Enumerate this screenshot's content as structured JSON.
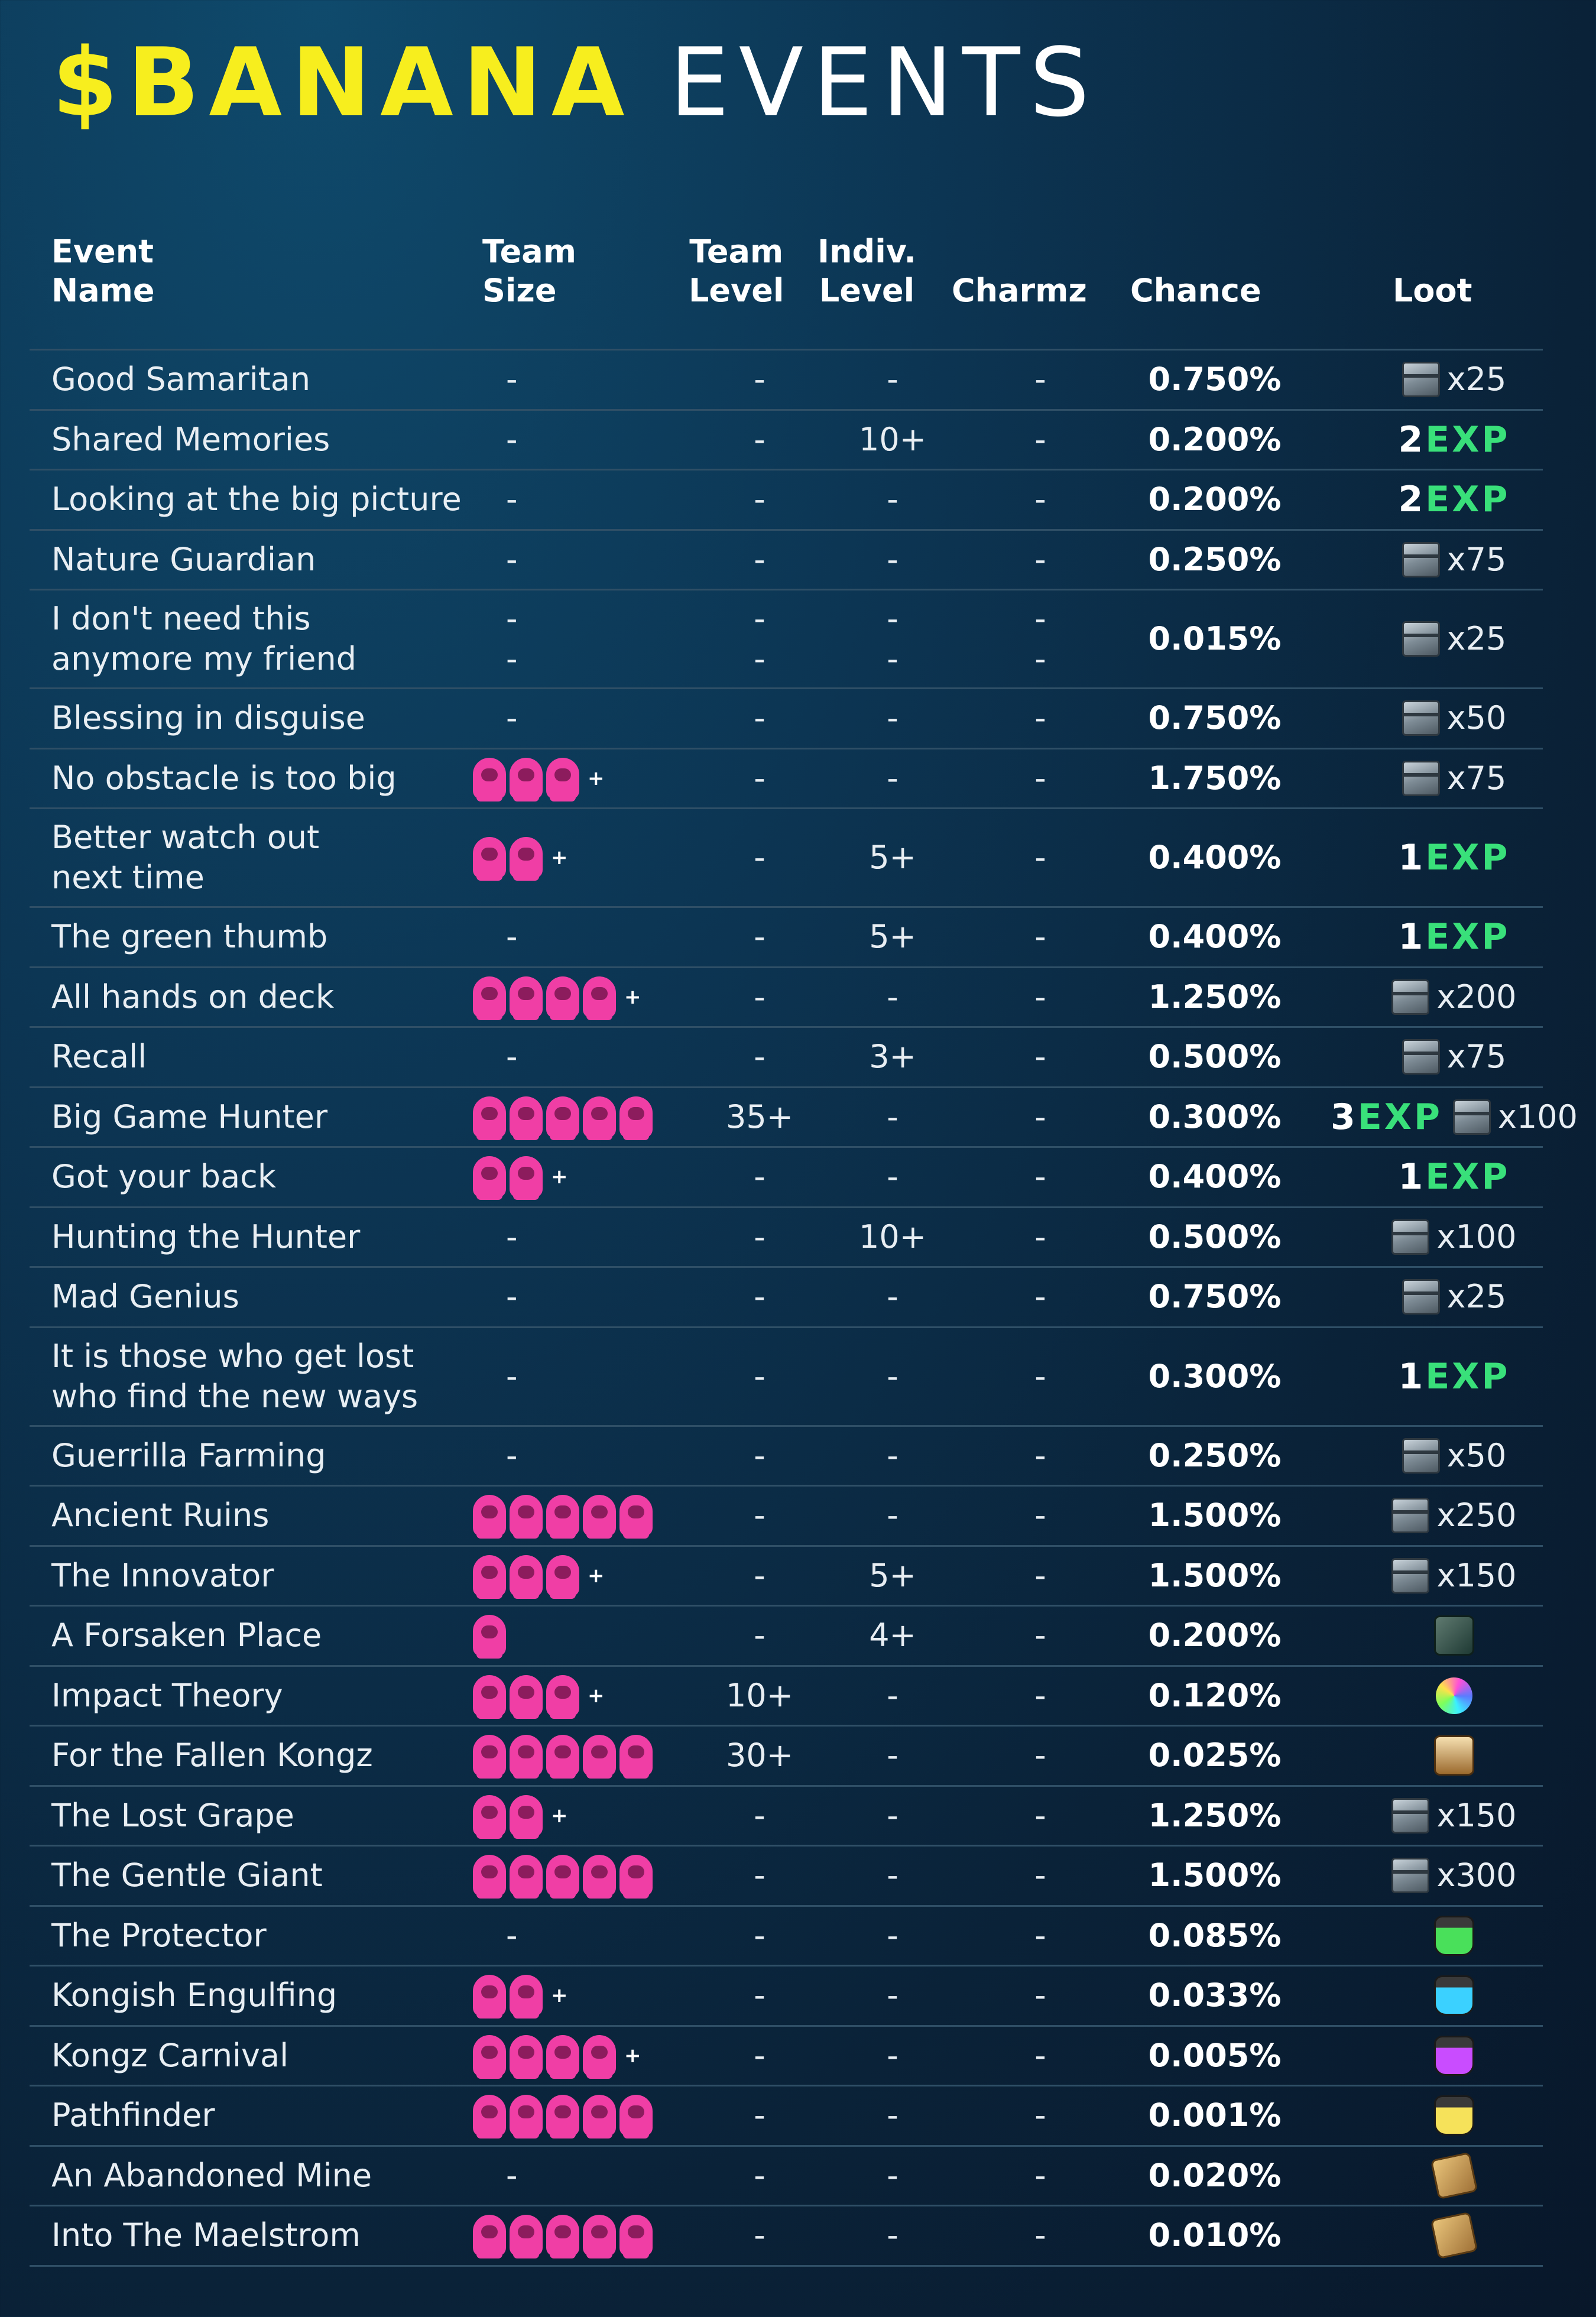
{
  "title": {
    "accent": "$BANANA",
    "rest": "EVENTS"
  },
  "headers": {
    "name": "Event\nName",
    "team_size": "Team\nSize",
    "team_level": "Team\nLevel",
    "indiv_level": "Indiv.\nLevel",
    "charmz": "Charmz",
    "chance": "Chance",
    "loot": "Loot"
  },
  "colors": {
    "accent": "#f7ee1e",
    "ape": "#f03ea5",
    "exp": "#39e07a"
  },
  "rows": [
    {
      "name": "Good Samaritan",
      "apes": 0,
      "plus": false,
      "team_level": "-",
      "indiv_level": "-",
      "charmz": "-",
      "chance": "0.750%",
      "loot": {
        "type": "chest",
        "count": "x25"
      }
    },
    {
      "name": "Shared Memories",
      "apes": 0,
      "plus": false,
      "team_level": "-",
      "indiv_level": "10+",
      "charmz": "-",
      "chance": "0.200%",
      "loot": {
        "type": "exp",
        "num": "2",
        "word": "EXP"
      }
    },
    {
      "name": "Looking at the big picture",
      "apes": 0,
      "plus": false,
      "team_level": "-",
      "indiv_level": "-",
      "charmz": "-",
      "chance": "0.200%",
      "loot": {
        "type": "exp",
        "num": "2",
        "word": "EXP"
      }
    },
    {
      "name": "Nature Guardian",
      "apes": 0,
      "plus": false,
      "team_level": "-",
      "indiv_level": "-",
      "charmz": "-",
      "chance": "0.250%",
      "loot": {
        "type": "chest",
        "count": "x75"
      }
    },
    {
      "name": "I don't need this\nanymore my friend",
      "apes": 0,
      "plus": false,
      "double": true,
      "team_level": "-\n-",
      "indiv_level": "-\n-",
      "charmz": "-\n-",
      "team_dash": "-\n-",
      "chance": "0.015%",
      "loot": {
        "type": "chest",
        "count": "x25"
      }
    },
    {
      "name": "Blessing in disguise",
      "apes": 0,
      "plus": false,
      "team_level": "-",
      "indiv_level": "-",
      "charmz": "-",
      "chance": "0.750%",
      "loot": {
        "type": "chest",
        "count": "x50"
      }
    },
    {
      "name": "No obstacle is too big",
      "apes": 3,
      "plus": true,
      "team_level": "-",
      "indiv_level": "-",
      "charmz": "-",
      "chance": "1.750%",
      "loot": {
        "type": "chest",
        "count": "x75"
      }
    },
    {
      "name": "Better watch out\nnext time",
      "apes": 2,
      "plus": true,
      "double": true,
      "team_level": "-",
      "indiv_level": "5+",
      "charmz": "-",
      "chance": "0.400%",
      "loot": {
        "type": "exp",
        "num": "1",
        "word": "EXP"
      }
    },
    {
      "name": "The green thumb",
      "apes": 0,
      "plus": false,
      "team_level": "-",
      "indiv_level": "5+",
      "charmz": "-",
      "chance": "0.400%",
      "loot": {
        "type": "exp",
        "num": "1",
        "word": "EXP"
      }
    },
    {
      "name": "All hands on deck",
      "apes": 4,
      "plus": true,
      "team_level": "-",
      "indiv_level": "-",
      "charmz": "-",
      "chance": "1.250%",
      "loot": {
        "type": "chest",
        "count": "x200"
      }
    },
    {
      "name": "Recall",
      "apes": 0,
      "plus": false,
      "team_level": "-",
      "indiv_level": "3+",
      "charmz": "-",
      "chance": "0.500%",
      "loot": {
        "type": "chest",
        "count": "x75"
      }
    },
    {
      "name": "Big Game Hunter",
      "apes": 5,
      "plus": false,
      "team_level": "35+",
      "indiv_level": "-",
      "charmz": "-",
      "chance": "0.300%",
      "loot": {
        "type": "exp_chest",
        "num": "3",
        "word": "EXP",
        "count": "x100"
      }
    },
    {
      "name": "Got your back",
      "apes": 2,
      "plus": true,
      "team_level": "-",
      "indiv_level": "-",
      "charmz": "-",
      "chance": "0.400%",
      "loot": {
        "type": "exp",
        "num": "1",
        "word": "EXP"
      }
    },
    {
      "name": "Hunting the Hunter",
      "apes": 0,
      "plus": false,
      "team_level": "-",
      "indiv_level": "10+",
      "charmz": "-",
      "chance": "0.500%",
      "loot": {
        "type": "chest",
        "count": "x100"
      }
    },
    {
      "name": "Mad Genius",
      "apes": 0,
      "plus": false,
      "team_level": "-",
      "indiv_level": "-",
      "charmz": "-",
      "chance": "0.750%",
      "loot": {
        "type": "chest",
        "count": "x25"
      }
    },
    {
      "name": "It is those who get lost\nwho find the new ways",
      "apes": 0,
      "plus": false,
      "double": true,
      "team_level": "-",
      "indiv_level": "-",
      "charmz": "-",
      "chance": "0.300%",
      "loot": {
        "type": "exp",
        "num": "1",
        "word": "EXP"
      }
    },
    {
      "name": "Guerrilla Farming",
      "apes": 0,
      "plus": false,
      "team_level": "-",
      "indiv_level": "-",
      "charmz": "-",
      "chance": "0.250%",
      "loot": {
        "type": "chest",
        "count": "x50"
      }
    },
    {
      "name": "Ancient Ruins",
      "apes": 5,
      "plus": false,
      "team_level": "-",
      "indiv_level": "-",
      "charmz": "-",
      "chance": "1.500%",
      "loot": {
        "type": "chest",
        "count": "x250"
      }
    },
    {
      "name": "The Innovator",
      "apes": 3,
      "plus": true,
      "team_level": "-",
      "indiv_level": "5+",
      "charmz": "-",
      "chance": "1.500%",
      "loot": {
        "type": "chest",
        "count": "x150"
      }
    },
    {
      "name": "A Forsaken Place",
      "apes": 1,
      "plus": false,
      "team_level": "-",
      "indiv_level": "4+",
      "charmz": "-",
      "chance": "0.200%",
      "loot": {
        "type": "item",
        "icon": "gear-item-icon",
        "style": "gear"
      }
    },
    {
      "name": "Impact Theory",
      "apes": 3,
      "plus": true,
      "team_level": "10+",
      "indiv_level": "-",
      "charmz": "-",
      "chance": "0.120%",
      "loot": {
        "type": "item",
        "icon": "rainbow-gem-icon",
        "style": "gem"
      }
    },
    {
      "name": "For the Fallen Kongz",
      "apes": 5,
      "plus": false,
      "team_level": "30+",
      "indiv_level": "-",
      "charmz": "-",
      "chance": "0.025%",
      "loot": {
        "type": "item",
        "icon": "loot-box-icon",
        "style": "box"
      }
    },
    {
      "name": "The Lost Grape",
      "apes": 2,
      "plus": true,
      "team_level": "-",
      "indiv_level": "-",
      "charmz": "-",
      "chance": "1.250%",
      "loot": {
        "type": "chest",
        "count": "x150"
      }
    },
    {
      "name": "The Gentle Giant",
      "apes": 5,
      "plus": false,
      "team_level": "-",
      "indiv_level": "-",
      "charmz": "-",
      "chance": "1.500%",
      "loot": {
        "type": "chest",
        "count": "x300"
      }
    },
    {
      "name": "The Protector",
      "apes": 0,
      "plus": false,
      "team_level": "-",
      "indiv_level": "-",
      "charmz": "-",
      "chance": "0.085%",
      "loot": {
        "type": "item",
        "icon": "green-jar-icon",
        "style": "jar green"
      }
    },
    {
      "name": "Kongish Engulfing",
      "apes": 2,
      "plus": true,
      "team_level": "-",
      "indiv_level": "-",
      "charmz": "-",
      "chance": "0.033%",
      "loot": {
        "type": "item",
        "icon": "cyan-jar-icon",
        "style": "jar cyan"
      }
    },
    {
      "name": "Kongz Carnival",
      "apes": 4,
      "plus": true,
      "team_level": "-",
      "indiv_level": "-",
      "charmz": "-",
      "chance": "0.005%",
      "loot": {
        "type": "item",
        "icon": "purple-jar-icon",
        "style": "jar purple"
      }
    },
    {
      "name": "Pathfinder",
      "apes": 5,
      "plus": false,
      "team_level": "-",
      "indiv_level": "-",
      "charmz": "-",
      "chance": "0.001%",
      "loot": {
        "type": "item",
        "icon": "yellow-jar-icon",
        "style": "jar yellow"
      }
    },
    {
      "name": "An Abandoned Mine",
      "apes": 0,
      "plus": false,
      "team_level": "-",
      "indiv_level": "-",
      "charmz": "-",
      "chance": "0.020%",
      "loot": {
        "type": "item",
        "icon": "map-scroll-icon",
        "style": "scroll"
      }
    },
    {
      "name": "Into The Maelstrom",
      "apes": 5,
      "plus": false,
      "team_level": "-",
      "indiv_level": "-",
      "charmz": "-",
      "chance": "0.010%",
      "loot": {
        "type": "item",
        "icon": "ticket-scroll-icon",
        "style": "scroll"
      }
    }
  ]
}
